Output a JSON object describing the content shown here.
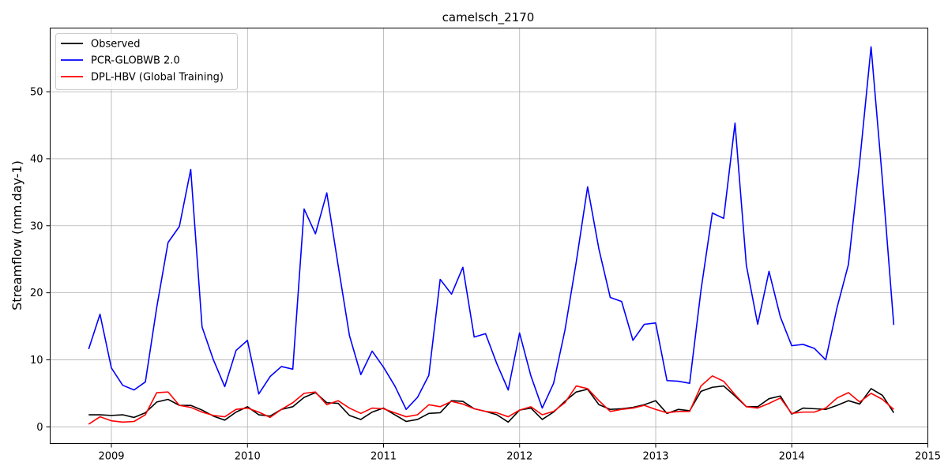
{
  "chart_data": {
    "type": "line",
    "title": "camelsch_2170",
    "xlabel": "",
    "ylabel": "Streamflow (mm.day-1)",
    "xlim": [
      2008.55,
      2015.0
    ],
    "ylim": [
      -2.5,
      59.5
    ],
    "x_ticks": [
      2009,
      2010,
      2011,
      2012,
      2013,
      2014,
      2015
    ],
    "x_tick_labels": [
      "2009",
      "2010",
      "2011",
      "2012",
      "2013",
      "2014",
      "2015"
    ],
    "y_ticks": [
      0,
      10,
      20,
      30,
      40,
      50
    ],
    "y_tick_labels": [
      "0",
      "10",
      "20",
      "30",
      "40",
      "50"
    ],
    "grid": true,
    "legend_position": "top-left",
    "x_start": 2008.833,
    "x_step": 0.08333,
    "series": [
      {
        "name": "Observed",
        "color": "#000000",
        "values": [
          1.8,
          1.8,
          1.7,
          1.8,
          1.4,
          2.1,
          3.7,
          4.1,
          3.2,
          3.2,
          2.5,
          1.6,
          1.0,
          2.2,
          3.0,
          1.8,
          1.6,
          2.6,
          3.0,
          4.4,
          5.1,
          3.6,
          3.5,
          1.7,
          1.1,
          2.2,
          2.8,
          1.8,
          0.8,
          1.1,
          2.0,
          2.1,
          3.9,
          3.8,
          2.7,
          2.3,
          1.8,
          0.7,
          2.5,
          2.8,
          1.1,
          2.2,
          3.8,
          5.2,
          5.6,
          3.3,
          2.6,
          2.7,
          2.9,
          3.3,
          3.9,
          2.0,
          2.6,
          2.4,
          5.3,
          5.9,
          6.1,
          4.6,
          3.0,
          3.0,
          4.2,
          4.6,
          1.9,
          2.8,
          2.7,
          2.6,
          3.2,
          3.9,
          3.4,
          5.7,
          4.7,
          2.1
        ]
      },
      {
        "name": "PCR-GLOBWB 2.0",
        "color": "#0000ff",
        "values": [
          11.6,
          16.8,
          8.8,
          6.2,
          5.5,
          6.7,
          17.8,
          27.5,
          29.9,
          38.4,
          14.9,
          10.0,
          6.0,
          11.4,
          12.9,
          4.9,
          7.5,
          9.0,
          8.6,
          32.5,
          28.8,
          34.9,
          24.1,
          13.6,
          7.8,
          11.3,
          8.9,
          6.1,
          2.6,
          4.4,
          7.7,
          22.0,
          19.8,
          23.8,
          13.4,
          13.9,
          9.4,
          5.5,
          14.0,
          7.6,
          2.8,
          6.5,
          14.4,
          24.6,
          35.8,
          26.5,
          19.3,
          18.7,
          12.9,
          15.3,
          15.5,
          6.9,
          6.8,
          6.5,
          20.4,
          31.9,
          31.1,
          45.3,
          24.1,
          15.3,
          23.2,
          16.4,
          12.1,
          12.3,
          11.7,
          10.0,
          17.8,
          24.2,
          39.6,
          56.7,
          36.8,
          15.2
        ]
      },
      {
        "name": "DPL-HBV (Global Training)",
        "color": "#ff0000",
        "values": [
          0.4,
          1.5,
          0.9,
          0.7,
          0.8,
          1.8,
          5.1,
          5.2,
          3.2,
          2.9,
          2.2,
          1.7,
          1.5,
          2.6,
          2.8,
          2.2,
          1.4,
          2.6,
          3.6,
          5.0,
          5.2,
          3.3,
          3.9,
          2.8,
          2.0,
          2.8,
          2.7,
          2.1,
          1.5,
          1.8,
          3.3,
          3.0,
          3.8,
          3.4,
          2.7,
          2.3,
          2.1,
          1.5,
          2.5,
          3.0,
          1.8,
          2.3,
          3.6,
          6.1,
          5.7,
          3.9,
          2.3,
          2.6,
          2.8,
          3.2,
          2.6,
          2.1,
          2.3,
          2.3,
          6.1,
          7.6,
          6.8,
          4.8,
          3.0,
          2.8,
          3.5,
          4.3,
          2.0,
          2.2,
          2.2,
          2.8,
          4.3,
          5.1,
          3.7,
          5.0,
          4.1,
          2.6
        ]
      }
    ]
  }
}
